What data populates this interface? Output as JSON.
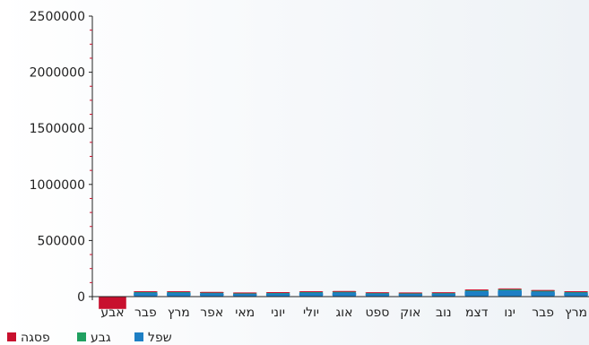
{
  "chart_data": {
    "type": "bar",
    "categories": [
      "אבע",
      "פבר",
      "מרץ",
      "אפר",
      "מאי",
      "יוני",
      "יולי",
      "אוג",
      "ספט",
      "אוק",
      "נוב",
      "דצמ",
      "ינו",
      "פבר",
      "מרץ"
    ],
    "series": [
      {
        "name": "שפל",
        "color": "#1e7fc4",
        "values": [
          0,
          40000,
          40000,
          35000,
          30000,
          33000,
          40000,
          42000,
          32000,
          30000,
          32000,
          55000,
          62000,
          50000,
          40000
        ]
      },
      {
        "name": "גבע",
        "color": "#20a060",
        "values": [
          0,
          3000,
          3000,
          3000,
          3000,
          3000,
          3000,
          3000,
          3000,
          3000,
          3000,
          3000,
          3000,
          3000,
          3000
        ]
      },
      {
        "name": "פסגה",
        "color": "#c8102e",
        "values": [
          -110000,
          5000,
          5000,
          4000,
          4000,
          4000,
          5000,
          5000,
          4000,
          4000,
          4000,
          6000,
          8000,
          6000,
          5000
        ]
      }
    ],
    "ylim": [
      0,
      2500000
    ],
    "yticks": [
      "0",
      "500000",
      "1000000",
      "1500000",
      "2000000",
      "2500000"
    ],
    "xlabel": "",
    "ylabel": "",
    "title": "",
    "legend_position": "bottom-left",
    "grid": false
  }
}
